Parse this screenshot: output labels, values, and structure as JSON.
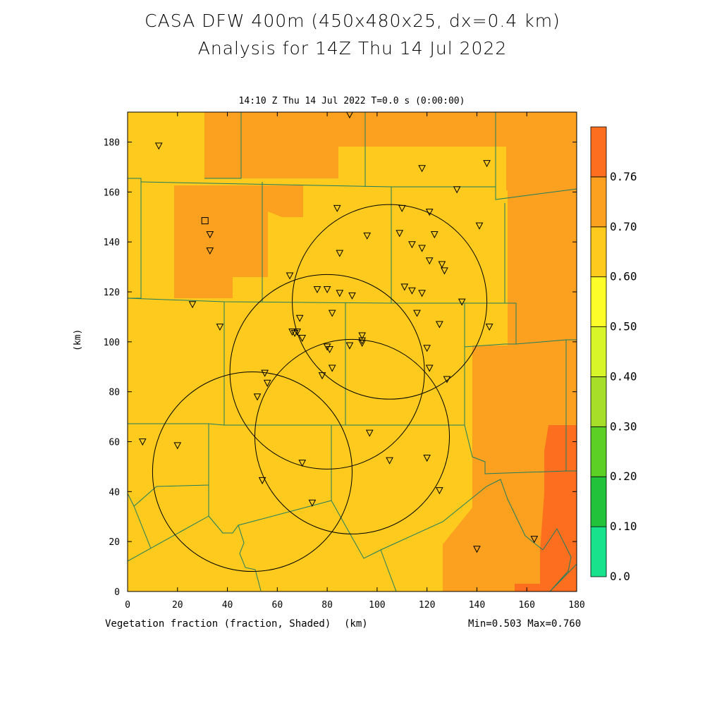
{
  "title_line1": "CASA DFW 400m (450x480x25, dx=0.4 km)",
  "title_line2": "Analysis for 14Z Thu 14 Jul 2022",
  "subtitle": "14:10 Z Thu 14 Jul 2022   T=0.0 s (0:00:00)",
  "xlabel_variable": "Vegetation fraction (fraction, Shaded)",
  "xlabel_unit": "(km)",
  "ylabel": "(km)",
  "minmax": "Min=0.503 Max=0.760",
  "axes": {
    "x_ticks": [
      "0",
      "20",
      "40",
      "60",
      "80",
      "100",
      "120",
      "140",
      "160",
      "180"
    ],
    "y_ticks": [
      "0",
      "20",
      "40",
      "60",
      "80",
      "100",
      "120",
      "140",
      "160",
      "180"
    ],
    "xlim": [
      0,
      180
    ],
    "ylim": [
      0,
      192
    ]
  },
  "colorbar": {
    "levels": [
      "0.0",
      "0.10",
      "0.20",
      "0.30",
      "0.40",
      "0.50",
      "0.60",
      "0.70",
      "0.76"
    ],
    "colors": [
      "#18e38c",
      "#22c33a",
      "#5cd025",
      "#a6de2a",
      "#d8f52a",
      "#fdfd2a",
      "#fdca1d",
      "#fba11f",
      "#fd6e1f"
    ]
  },
  "field_colors": {
    "base": "#fdca1d",
    "mid": "#fba11f",
    "high": "#fd6e1f"
  },
  "radar_rings_km": [
    {
      "cx": 105,
      "cy": 116,
      "r": 39
    },
    {
      "cx": 80,
      "cy": 88,
      "r": 39
    },
    {
      "cx": 90,
      "cy": 62,
      "r": 39
    },
    {
      "cx": 50,
      "cy": 48,
      "r": 40
    }
  ],
  "stations_km": [
    [
      12.5,
      178.5
    ],
    [
      89,
      191
    ],
    [
      118,
      169.5
    ],
    [
      144,
      171.5
    ],
    [
      132,
      161
    ],
    [
      84,
      153.5
    ],
    [
      110,
      153.5
    ],
    [
      121,
      152
    ],
    [
      141,
      146.5
    ],
    [
      33,
      143
    ],
    [
      96,
      142.5
    ],
    [
      109,
      143.5
    ],
    [
      123,
      143
    ],
    [
      114,
      139
    ],
    [
      118,
      137.5
    ],
    [
      33,
      136.5
    ],
    [
      85,
      135.5
    ],
    [
      121,
      132.5
    ],
    [
      126,
      131
    ],
    [
      127,
      128.5
    ],
    [
      65,
      126.5
    ],
    [
      76,
      121
    ],
    [
      80,
      121
    ],
    [
      85,
      119.5
    ],
    [
      90,
      118.5
    ],
    [
      111,
      122
    ],
    [
      114,
      120.5
    ],
    [
      118,
      119.5
    ],
    [
      134,
      116
    ],
    [
      26,
      115
    ],
    [
      82,
      111.5
    ],
    [
      116,
      111.5
    ],
    [
      125,
      107
    ],
    [
      37,
      106
    ],
    [
      145,
      106
    ],
    [
      66,
      104
    ],
    [
      68,
      104
    ],
    [
      67,
      103.5
    ],
    [
      69,
      109.5
    ],
    [
      70,
      101.5
    ],
    [
      94,
      102.5
    ],
    [
      94,
      100.5
    ],
    [
      94,
      99.5
    ],
    [
      89,
      98.5
    ],
    [
      80,
      98
    ],
    [
      81,
      97
    ],
    [
      120,
      97.5
    ],
    [
      121,
      89.5
    ],
    [
      82,
      89.5
    ],
    [
      78,
      86.5
    ],
    [
      128,
      85
    ],
    [
      55,
      87.5
    ],
    [
      56,
      83.5
    ],
    [
      52,
      78
    ],
    [
      97,
      63.5
    ],
    [
      6,
      60
    ],
    [
      20,
      58.5
    ],
    [
      120,
      53.5
    ],
    [
      105,
      52.5
    ],
    [
      70,
      51.5
    ],
    [
      54,
      44.5
    ],
    [
      125,
      40.5
    ],
    [
      74,
      35.5
    ],
    [
      140,
      17
    ],
    [
      163,
      21
    ]
  ],
  "square_station_km": [
    31,
    148.5
  ]
}
